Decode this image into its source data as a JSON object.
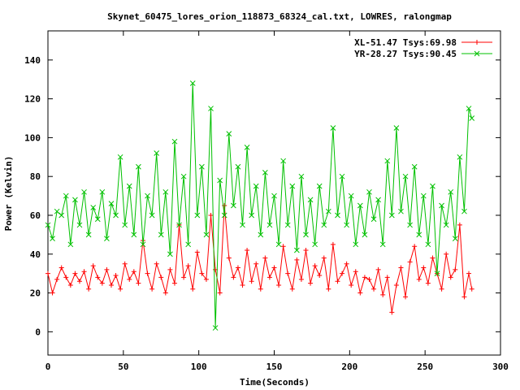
{
  "chart_data": {
    "type": "line",
    "title": "Skynet_60475_lores_orion_118873_68324_cal.txt, LOWRES, ralongmap",
    "xlabel": "Time(Seconds)",
    "ylabel": "Power (Kelvin)",
    "xlim": [
      0,
      300
    ],
    "ylim": [
      -12,
      155
    ],
    "xticks": [
      0,
      50,
      100,
      150,
      200,
      250,
      300
    ],
    "yticks": [
      0,
      20,
      40,
      60,
      80,
      100,
      120,
      140
    ],
    "grid": false,
    "legend_position": "top-right",
    "series": [
      {
        "name": "XL-51.47 Tsys:69.98",
        "color": "#ff0000",
        "marker": "+",
        "x": [
          0,
          3,
          6,
          9,
          12,
          15,
          18,
          21,
          24,
          27,
          30,
          33,
          36,
          39,
          42,
          45,
          48,
          51,
          54,
          57,
          60,
          63,
          66,
          69,
          72,
          75,
          78,
          81,
          84,
          87,
          90,
          93,
          96,
          99,
          102,
          105,
          108,
          111,
          114,
          117,
          120,
          123,
          126,
          129,
          132,
          135,
          138,
          141,
          144,
          147,
          150,
          153,
          156,
          159,
          162,
          165,
          168,
          171,
          174,
          177,
          180,
          183,
          186,
          189,
          192,
          195,
          198,
          201,
          204,
          207,
          210,
          213,
          216,
          219,
          222,
          225,
          228,
          231,
          234,
          237,
          240,
          243,
          246,
          249,
          252,
          255,
          258,
          261,
          264,
          267,
          270,
          273,
          276,
          279,
          281
        ],
        "y": [
          30,
          20,
          27,
          33,
          28,
          24,
          30,
          26,
          31,
          22,
          34,
          28,
          25,
          32,
          24,
          29,
          22,
          35,
          27,
          31,
          25,
          47,
          30,
          22,
          35,
          28,
          20,
          32,
          25,
          55,
          28,
          34,
          22,
          41,
          30,
          27,
          60,
          32,
          20,
          65,
          38,
          28,
          33,
          24,
          42,
          26,
          35,
          22,
          38,
          28,
          33,
          24,
          44,
          30,
          22,
          37,
          27,
          42,
          25,
          34,
          29,
          38,
          22,
          45,
          26,
          30,
          35,
          24,
          31,
          20,
          28,
          27,
          22,
          32,
          19,
          28,
          10,
          24,
          33,
          18,
          36,
          44,
          27,
          33,
          25,
          38,
          30,
          22,
          40,
          28,
          32,
          55,
          18,
          30,
          22
        ]
      },
      {
        "name": "YR-28.27 Tsys:90.45",
        "color": "#00c000",
        "marker": "x",
        "x": [
          0,
          3,
          6,
          9,
          12,
          15,
          18,
          21,
          24,
          27,
          30,
          33,
          36,
          39,
          42,
          45,
          48,
          51,
          54,
          57,
          60,
          63,
          66,
          69,
          72,
          75,
          78,
          81,
          84,
          87,
          90,
          93,
          96,
          99,
          102,
          105,
          108,
          111,
          114,
          117,
          120,
          123,
          126,
          129,
          132,
          135,
          138,
          141,
          144,
          147,
          150,
          153,
          156,
          159,
          162,
          165,
          168,
          171,
          174,
          177,
          180,
          183,
          186,
          189,
          192,
          195,
          198,
          201,
          204,
          207,
          210,
          213,
          216,
          219,
          222,
          225,
          228,
          231,
          234,
          237,
          240,
          243,
          246,
          249,
          252,
          255,
          258,
          261,
          264,
          267,
          270,
          273,
          276,
          279,
          281
        ],
        "y": [
          55,
          48,
          62,
          60,
          70,
          45,
          68,
          55,
          72,
          50,
          64,
          58,
          72,
          48,
          66,
          60,
          90,
          55,
          75,
          50,
          85,
          45,
          70,
          60,
          92,
          50,
          72,
          40,
          98,
          55,
          80,
          45,
          128,
          60,
          85,
          50,
          115,
          2,
          78,
          60,
          102,
          65,
          85,
          55,
          95,
          60,
          75,
          50,
          82,
          55,
          70,
          45,
          88,
          55,
          75,
          42,
          80,
          50,
          68,
          45,
          75,
          55,
          62,
          105,
          60,
          80,
          55,
          70,
          45,
          65,
          50,
          72,
          58,
          68,
          45,
          88,
          60,
          105,
          62,
          80,
          55,
          85,
          50,
          70,
          45,
          75,
          30,
          65,
          55,
          72,
          48,
          90,
          62,
          115,
          110
        ]
      }
    ]
  }
}
